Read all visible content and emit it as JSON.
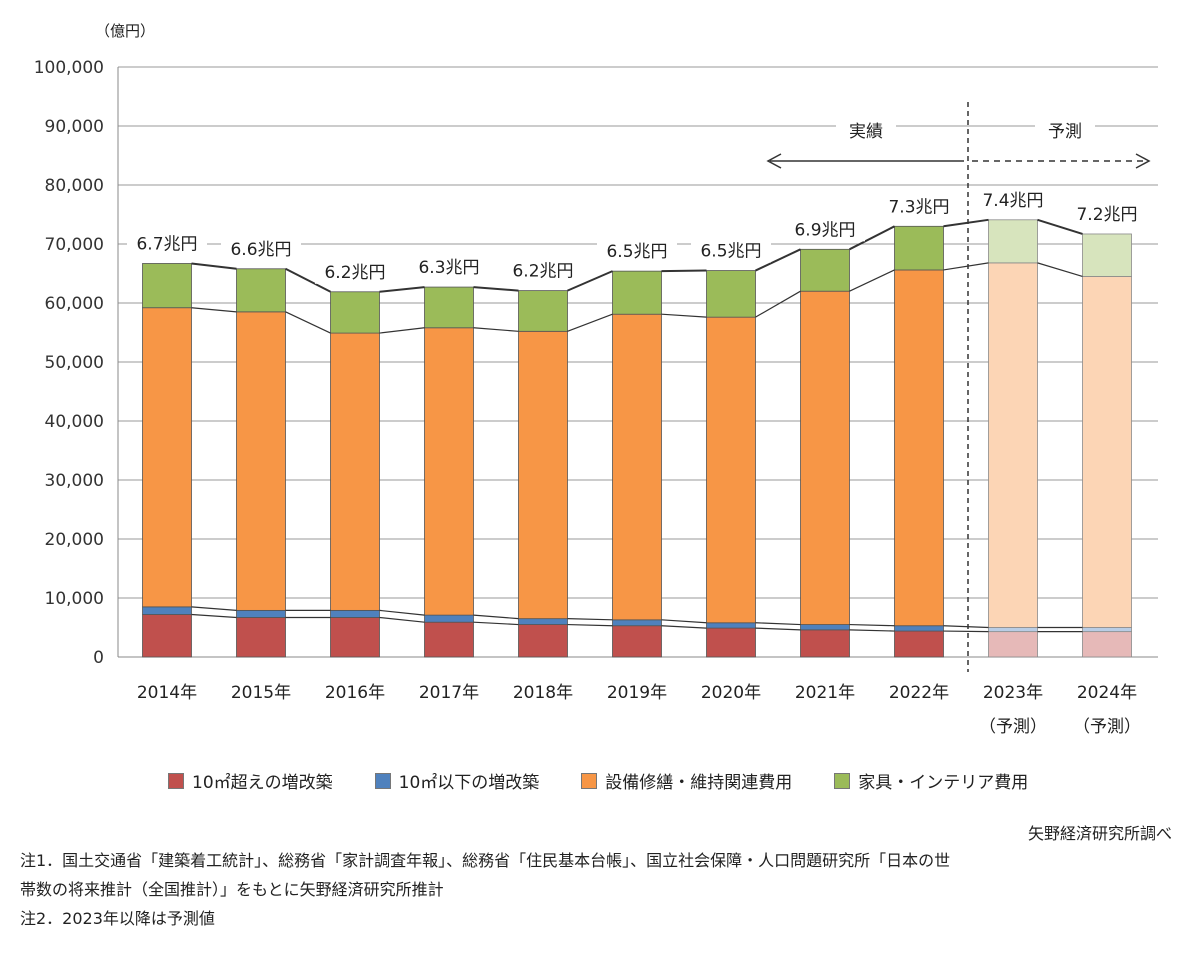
{
  "unit_label": "（億円）",
  "source": "矢野経済研究所調べ",
  "notes": [
    "注1．国土交通省「建築着工統計」、総務省「家計調査年報」、総務省「住民基本台帳」、国立社会保障・人口問題研究所「日本の世",
    "帯数の将来推計（全国推計）」をもとに矢野経済研究所推計",
    "注2．2023年以降は予測値"
  ],
  "annotations": {
    "actual": "実績",
    "forecast": "予測"
  },
  "colors": {
    "s1": "#c0504d",
    "s2": "#4f81bd",
    "s3": "#f79646",
    "s4": "#9bbb59",
    "s1_forecast": "#e6b9b8",
    "s2_forecast": "#b9cde5",
    "s3_forecast": "#fcd5b5",
    "s4_forecast": "#d7e4bd"
  },
  "chart_data": {
    "type": "bar",
    "stacked": true,
    "categories": [
      "2014年",
      "2015年",
      "2016年",
      "2017年",
      "2018年",
      "2019年",
      "2020年",
      "2021年",
      "2022年",
      "2023年",
      "2024年"
    ],
    "category_sublabels": [
      "",
      "",
      "",
      "",
      "",
      "",
      "",
      "",
      "",
      "（予測）",
      "（予測）"
    ],
    "forecast_start_index": 9,
    "series": [
      {
        "name": "10㎡超えの増改築",
        "values": [
          7200,
          6700,
          6700,
          5900,
          5500,
          5300,
          4900,
          4600,
          4400,
          4300,
          4300
        ]
      },
      {
        "name": "10㎡以下の増改築",
        "values": [
          1300,
          1200,
          1200,
          1200,
          1000,
          1000,
          900,
          900,
          900,
          700,
          700
        ]
      },
      {
        "name": "設備修繕・維持関連費用",
        "values": [
          50700,
          50600,
          47000,
          48700,
          48700,
          51800,
          51800,
          56500,
          60300,
          61800,
          59500
        ]
      },
      {
        "name": "家具・インテリア費用",
        "values": [
          7500,
          7300,
          7000,
          6900,
          6900,
          7300,
          7900,
          7100,
          7400,
          7300,
          7200
        ]
      }
    ],
    "totals_labels": [
      "6.7兆円",
      "6.6兆円",
      "6.2兆円",
      "6.3兆円",
      "6.2兆円",
      "6.5兆円",
      "6.5兆円",
      "6.9兆円",
      "7.3兆円",
      "7.4兆円",
      "7.2兆円"
    ],
    "y_ticks": [
      "0",
      "10,000",
      "20,000",
      "30,000",
      "40,000",
      "50,000",
      "60,000",
      "70,000",
      "80,000",
      "90,000",
      "100,000"
    ],
    "ylim": [
      0,
      100000
    ],
    "grid": true,
    "legend_position": "bottom"
  }
}
